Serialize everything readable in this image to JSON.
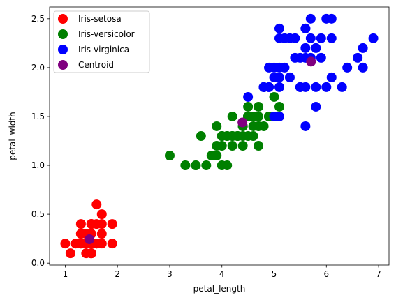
{
  "chart_data": {
    "type": "scatter",
    "title": "",
    "xlabel": "petal_length",
    "ylabel": "petal_width",
    "xlim": [
      0.7,
      7.2
    ],
    "ylim": [
      -0.02,
      2.62
    ],
    "xticks": [
      1,
      2,
      3,
      4,
      5,
      6,
      7
    ],
    "yticks": [
      0.0,
      0.5,
      1.0,
      1.5,
      2.0,
      2.5
    ],
    "grid": false,
    "legend_position": "top-left",
    "series": [
      {
        "name": "Iris-setosa",
        "color": "#ff0000",
        "points": [
          [
            1.4,
            0.2
          ],
          [
            1.4,
            0.2
          ],
          [
            1.3,
            0.2
          ],
          [
            1.5,
            0.2
          ],
          [
            1.4,
            0.2
          ],
          [
            1.7,
            0.4
          ],
          [
            1.4,
            0.3
          ],
          [
            1.5,
            0.2
          ],
          [
            1.4,
            0.2
          ],
          [
            1.5,
            0.1
          ],
          [
            1.5,
            0.2
          ],
          [
            1.6,
            0.2
          ],
          [
            1.4,
            0.1
          ],
          [
            1.1,
            0.1
          ],
          [
            1.2,
            0.2
          ],
          [
            1.5,
            0.4
          ],
          [
            1.3,
            0.4
          ],
          [
            1.4,
            0.3
          ],
          [
            1.7,
            0.3
          ],
          [
            1.5,
            0.3
          ],
          [
            1.7,
            0.2
          ],
          [
            1.5,
            0.4
          ],
          [
            1.0,
            0.2
          ],
          [
            1.7,
            0.5
          ],
          [
            1.9,
            0.2
          ],
          [
            1.6,
            0.2
          ],
          [
            1.6,
            0.4
          ],
          [
            1.5,
            0.2
          ],
          [
            1.4,
            0.2
          ],
          [
            1.6,
            0.2
          ],
          [
            1.6,
            0.2
          ],
          [
            1.5,
            0.4
          ],
          [
            1.5,
            0.1
          ],
          [
            1.4,
            0.2
          ],
          [
            1.5,
            0.1
          ],
          [
            1.2,
            0.2
          ],
          [
            1.3,
            0.2
          ],
          [
            1.5,
            0.1
          ],
          [
            1.3,
            0.2
          ],
          [
            1.5,
            0.2
          ],
          [
            1.3,
            0.3
          ],
          [
            1.3,
            0.3
          ],
          [
            1.3,
            0.2
          ],
          [
            1.6,
            0.6
          ],
          [
            1.9,
            0.4
          ],
          [
            1.4,
            0.3
          ],
          [
            1.6,
            0.2
          ],
          [
            1.4,
            0.2
          ],
          [
            1.5,
            0.2
          ],
          [
            1.4,
            0.2
          ]
        ]
      },
      {
        "name": "Iris-versicolor",
        "color": "#008000",
        "points": [
          [
            4.7,
            1.4
          ],
          [
            4.5,
            1.5
          ],
          [
            4.9,
            1.5
          ],
          [
            4.0,
            1.3
          ],
          [
            4.6,
            1.5
          ],
          [
            4.5,
            1.3
          ],
          [
            4.7,
            1.6
          ],
          [
            3.3,
            1.0
          ],
          [
            4.6,
            1.3
          ],
          [
            3.9,
            1.4
          ],
          [
            3.5,
            1.0
          ],
          [
            4.2,
            1.5
          ],
          [
            4.0,
            1.0
          ],
          [
            4.7,
            1.4
          ],
          [
            3.6,
            1.3
          ],
          [
            4.4,
            1.4
          ],
          [
            4.5,
            1.5
          ],
          [
            4.1,
            1.0
          ],
          [
            4.5,
            1.5
          ],
          [
            3.9,
            1.1
          ],
          [
            4.8,
            1.8
          ],
          [
            4.0,
            1.3
          ],
          [
            4.9,
            1.5
          ],
          [
            4.7,
            1.2
          ],
          [
            4.3,
            1.3
          ],
          [
            4.4,
            1.4
          ],
          [
            4.8,
            1.4
          ],
          [
            5.0,
            1.7
          ],
          [
            4.5,
            1.5
          ],
          [
            3.5,
            1.0
          ],
          [
            3.8,
            1.1
          ],
          [
            3.7,
            1.0
          ],
          [
            3.9,
            1.2
          ],
          [
            5.1,
            1.6
          ],
          [
            4.5,
            1.5
          ],
          [
            4.5,
            1.6
          ],
          [
            4.7,
            1.5
          ],
          [
            4.4,
            1.3
          ],
          [
            4.1,
            1.3
          ],
          [
            4.0,
            1.3
          ],
          [
            4.4,
            1.2
          ],
          [
            4.6,
            1.4
          ],
          [
            4.0,
            1.2
          ],
          [
            3.3,
            1.0
          ],
          [
            4.2,
            1.3
          ],
          [
            4.2,
            1.2
          ],
          [
            4.2,
            1.3
          ],
          [
            4.3,
            1.3
          ],
          [
            3.0,
            1.1
          ],
          [
            4.1,
            1.3
          ]
        ]
      },
      {
        "name": "Iris-virginica",
        "color": "#0000ff",
        "points": [
          [
            6.0,
            2.5
          ],
          [
            5.1,
            1.9
          ],
          [
            5.9,
            2.1
          ],
          [
            5.6,
            1.8
          ],
          [
            5.8,
            2.2
          ],
          [
            6.6,
            2.1
          ],
          [
            4.5,
            1.7
          ],
          [
            6.3,
            1.8
          ],
          [
            5.8,
            1.8
          ],
          [
            6.1,
            2.5
          ],
          [
            5.1,
            2.0
          ],
          [
            5.3,
            1.9
          ],
          [
            5.5,
            2.1
          ],
          [
            5.0,
            2.0
          ],
          [
            5.1,
            2.4
          ],
          [
            5.3,
            2.3
          ],
          [
            5.5,
            1.8
          ],
          [
            6.7,
            2.2
          ],
          [
            6.9,
            2.3
          ],
          [
            5.0,
            1.5
          ],
          [
            5.7,
            2.3
          ],
          [
            4.9,
            2.0
          ],
          [
            6.7,
            2.0
          ],
          [
            4.9,
            1.8
          ],
          [
            5.7,
            2.1
          ],
          [
            6.0,
            1.8
          ],
          [
            4.8,
            1.8
          ],
          [
            4.9,
            1.8
          ],
          [
            5.6,
            2.1
          ],
          [
            5.8,
            1.6
          ],
          [
            6.1,
            1.9
          ],
          [
            6.4,
            2.0
          ],
          [
            5.6,
            2.2
          ],
          [
            5.1,
            1.5
          ],
          [
            5.6,
            1.4
          ],
          [
            6.1,
            2.3
          ],
          [
            5.6,
            2.4
          ],
          [
            5.5,
            1.8
          ],
          [
            4.8,
            1.8
          ],
          [
            5.4,
            2.1
          ],
          [
            5.6,
            2.4
          ],
          [
            5.1,
            2.3
          ],
          [
            5.9,
            2.3
          ],
          [
            5.7,
            2.5
          ],
          [
            5.2,
            2.3
          ],
          [
            5.0,
            1.9
          ],
          [
            5.2,
            2.0
          ],
          [
            5.4,
            2.3
          ],
          [
            5.1,
            1.8
          ]
        ]
      },
      {
        "name": "Centroid",
        "color": "#800080",
        "points": [
          [
            1.464,
            0.244
          ],
          [
            4.393,
            1.439
          ],
          [
            5.706,
            2.061
          ]
        ]
      }
    ]
  }
}
